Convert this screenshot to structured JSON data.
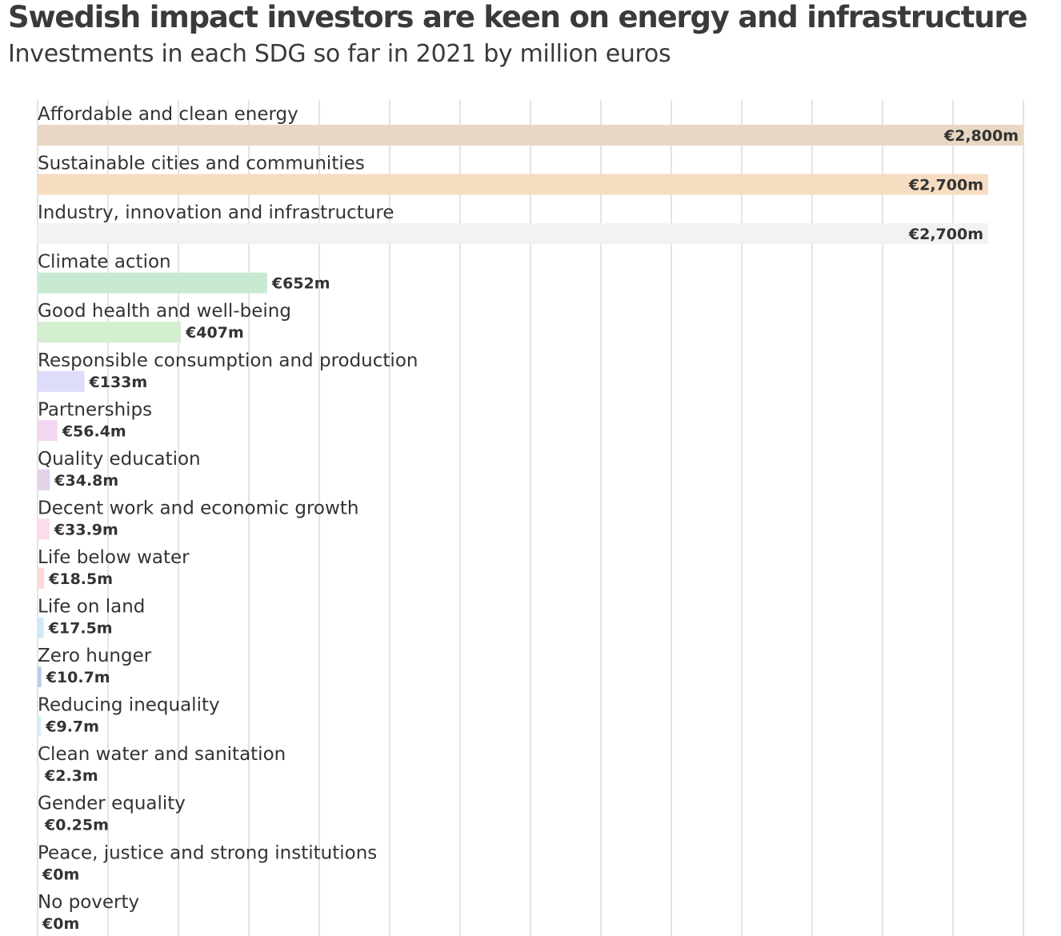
{
  "header": {
    "title": "Swedish impact investors are keen on energy and infrastructure",
    "subtitle": "Investments in each SDG so far in 2021 by million euros"
  },
  "chart_data": {
    "type": "bar",
    "orientation": "horizontal",
    "title": "Swedish impact investors are keen on energy and infrastructure",
    "subtitle": "Investments in each SDG so far in 2021 by million euros",
    "xlim": [
      0,
      2800
    ],
    "grid": true,
    "categories": [
      "Affordable and clean energy",
      "Sustainable cities and communities",
      "Industry, innovation and infrastructure",
      "Climate action",
      "Good health and well-being",
      "Responsible consumption and production",
      "Partnerships",
      "Quality education",
      "Decent work and economic growth",
      "Life below water",
      "Life on land",
      "Zero hunger",
      "Reducing inequality",
      "Clean water and sanitation",
      "Gender equality",
      "Peace, justice and strong institutions",
      "No poverty"
    ],
    "values": [
      2800,
      2700,
      2700,
      652,
      407,
      133,
      56.4,
      34.8,
      33.9,
      18.5,
      17.5,
      10.7,
      9.7,
      2.3,
      0.25,
      0,
      0
    ],
    "value_labels": [
      "€2,800m",
      "€2,700m",
      "€2,700m",
      "€652m",
      "€407m",
      "€133m",
      "€56.4m",
      "€34.8m",
      "€33.9m",
      "€18.5m",
      "€17.5m",
      "€10.7m",
      "€9.7m",
      "€2.3m",
      "€0.25m",
      "€0m",
      "€0m"
    ],
    "colors": [
      "#e8d8c3",
      "#f6dcc1",
      "#f2f2f2",
      "#c8ead3",
      "#d4efd0",
      "#dedcfb",
      "#f4d6f2",
      "#e1d1e9",
      "#fbdcea",
      "#fcd8d9",
      "#d0e8f8",
      "#b9cde6",
      "#d4eef8",
      "#f2f2f2",
      "#f2f2f2",
      "#f2f2f2",
      "#f2f2f2"
    ]
  }
}
